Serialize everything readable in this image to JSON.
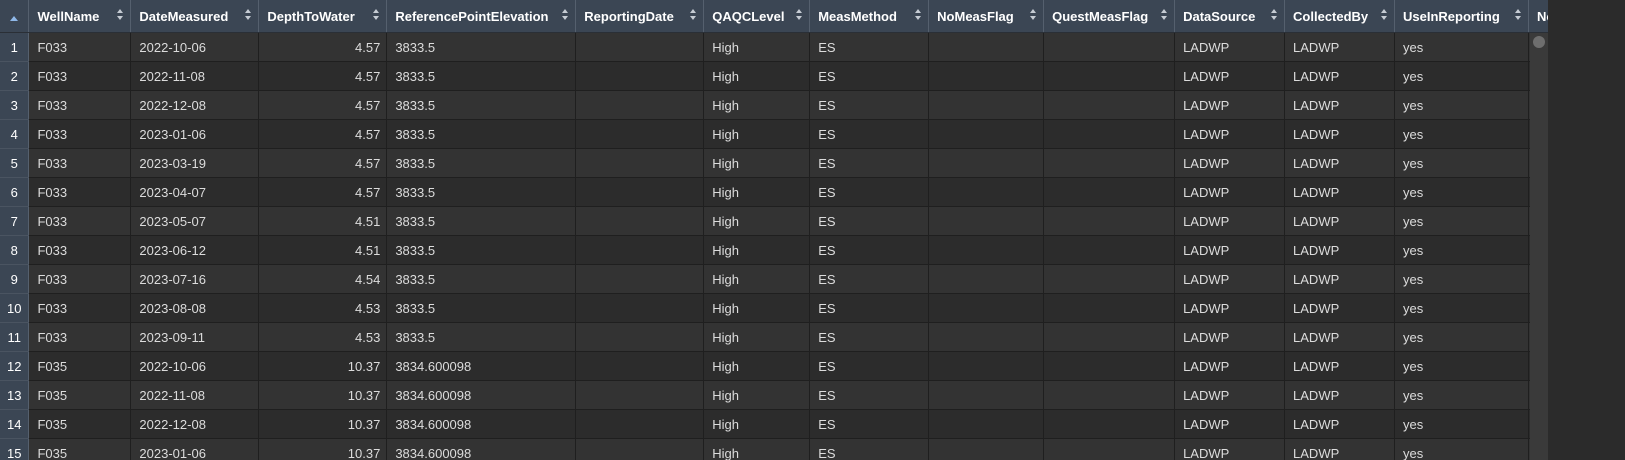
{
  "columns": [
    {
      "key": "idx",
      "label": ""
    },
    {
      "key": "WellName",
      "label": "WellName"
    },
    {
      "key": "DateMeasured",
      "label": "DateMeasured"
    },
    {
      "key": "DepthToWater",
      "label": "DepthToWater"
    },
    {
      "key": "ReferencePointElevation",
      "label": "ReferencePointElevation"
    },
    {
      "key": "ReportingDate",
      "label": "ReportingDate"
    },
    {
      "key": "QAQCLevel",
      "label": "QAQCLevel"
    },
    {
      "key": "MeasMethod",
      "label": "MeasMethod"
    },
    {
      "key": "NoMeasFlag",
      "label": "NoMeasFlag"
    },
    {
      "key": "QuestMeasFlag",
      "label": "QuestMeasFlag"
    },
    {
      "key": "DataSource",
      "label": "DataSource"
    },
    {
      "key": "CollectedBy",
      "label": "CollectedBy"
    },
    {
      "key": "UseInReporting",
      "label": "UseInReporting"
    },
    {
      "key": "Notes",
      "label": "No"
    }
  ],
  "rows": [
    {
      "idx": "1",
      "WellName": "F033",
      "DateMeasured": "2022-10-06",
      "DepthToWater": "4.57",
      "ReferencePointElevation": "3833.5",
      "ReportingDate": "",
      "QAQCLevel": "High",
      "MeasMethod": "ES",
      "NoMeasFlag": "",
      "QuestMeasFlag": "",
      "DataSource": "LADWP",
      "CollectedBy": "LADWP",
      "UseInReporting": "yes"
    },
    {
      "idx": "2",
      "WellName": "F033",
      "DateMeasured": "2022-11-08",
      "DepthToWater": "4.57",
      "ReferencePointElevation": "3833.5",
      "ReportingDate": "",
      "QAQCLevel": "High",
      "MeasMethod": "ES",
      "NoMeasFlag": "",
      "QuestMeasFlag": "",
      "DataSource": "LADWP",
      "CollectedBy": "LADWP",
      "UseInReporting": "yes"
    },
    {
      "idx": "3",
      "WellName": "F033",
      "DateMeasured": "2022-12-08",
      "DepthToWater": "4.57",
      "ReferencePointElevation": "3833.5",
      "ReportingDate": "",
      "QAQCLevel": "High",
      "MeasMethod": "ES",
      "NoMeasFlag": "",
      "QuestMeasFlag": "",
      "DataSource": "LADWP",
      "CollectedBy": "LADWP",
      "UseInReporting": "yes"
    },
    {
      "idx": "4",
      "WellName": "F033",
      "DateMeasured": "2023-01-06",
      "DepthToWater": "4.57",
      "ReferencePointElevation": "3833.5",
      "ReportingDate": "",
      "QAQCLevel": "High",
      "MeasMethod": "ES",
      "NoMeasFlag": "",
      "QuestMeasFlag": "",
      "DataSource": "LADWP",
      "CollectedBy": "LADWP",
      "UseInReporting": "yes"
    },
    {
      "idx": "5",
      "WellName": "F033",
      "DateMeasured": "2023-03-19",
      "DepthToWater": "4.57",
      "ReferencePointElevation": "3833.5",
      "ReportingDate": "",
      "QAQCLevel": "High",
      "MeasMethod": "ES",
      "NoMeasFlag": "",
      "QuestMeasFlag": "",
      "DataSource": "LADWP",
      "CollectedBy": "LADWP",
      "UseInReporting": "yes"
    },
    {
      "idx": "6",
      "WellName": "F033",
      "DateMeasured": "2023-04-07",
      "DepthToWater": "4.57",
      "ReferencePointElevation": "3833.5",
      "ReportingDate": "",
      "QAQCLevel": "High",
      "MeasMethod": "ES",
      "NoMeasFlag": "",
      "QuestMeasFlag": "",
      "DataSource": "LADWP",
      "CollectedBy": "LADWP",
      "UseInReporting": "yes"
    },
    {
      "idx": "7",
      "WellName": "F033",
      "DateMeasured": "2023-05-07",
      "DepthToWater": "4.51",
      "ReferencePointElevation": "3833.5",
      "ReportingDate": "",
      "QAQCLevel": "High",
      "MeasMethod": "ES",
      "NoMeasFlag": "",
      "QuestMeasFlag": "",
      "DataSource": "LADWP",
      "CollectedBy": "LADWP",
      "UseInReporting": "yes"
    },
    {
      "idx": "8",
      "WellName": "F033",
      "DateMeasured": "2023-06-12",
      "DepthToWater": "4.51",
      "ReferencePointElevation": "3833.5",
      "ReportingDate": "",
      "QAQCLevel": "High",
      "MeasMethod": "ES",
      "NoMeasFlag": "",
      "QuestMeasFlag": "",
      "DataSource": "LADWP",
      "CollectedBy": "LADWP",
      "UseInReporting": "yes"
    },
    {
      "idx": "9",
      "WellName": "F033",
      "DateMeasured": "2023-07-16",
      "DepthToWater": "4.54",
      "ReferencePointElevation": "3833.5",
      "ReportingDate": "",
      "QAQCLevel": "High",
      "MeasMethod": "ES",
      "NoMeasFlag": "",
      "QuestMeasFlag": "",
      "DataSource": "LADWP",
      "CollectedBy": "LADWP",
      "UseInReporting": "yes"
    },
    {
      "idx": "10",
      "WellName": "F033",
      "DateMeasured": "2023-08-08",
      "DepthToWater": "4.53",
      "ReferencePointElevation": "3833.5",
      "ReportingDate": "",
      "QAQCLevel": "High",
      "MeasMethod": "ES",
      "NoMeasFlag": "",
      "QuestMeasFlag": "",
      "DataSource": "LADWP",
      "CollectedBy": "LADWP",
      "UseInReporting": "yes"
    },
    {
      "idx": "11",
      "WellName": "F033",
      "DateMeasured": "2023-09-11",
      "DepthToWater": "4.53",
      "ReferencePointElevation": "3833.5",
      "ReportingDate": "",
      "QAQCLevel": "High",
      "MeasMethod": "ES",
      "NoMeasFlag": "",
      "QuestMeasFlag": "",
      "DataSource": "LADWP",
      "CollectedBy": "LADWP",
      "UseInReporting": "yes"
    },
    {
      "idx": "12",
      "WellName": "F035",
      "DateMeasured": "2022-10-06",
      "DepthToWater": "10.37",
      "ReferencePointElevation": "3834.600098",
      "ReportingDate": "",
      "QAQCLevel": "High",
      "MeasMethod": "ES",
      "NoMeasFlag": "",
      "QuestMeasFlag": "",
      "DataSource": "LADWP",
      "CollectedBy": "LADWP",
      "UseInReporting": "yes"
    },
    {
      "idx": "13",
      "WellName": "F035",
      "DateMeasured": "2022-11-08",
      "DepthToWater": "10.37",
      "ReferencePointElevation": "3834.600098",
      "ReportingDate": "",
      "QAQCLevel": "High",
      "MeasMethod": "ES",
      "NoMeasFlag": "",
      "QuestMeasFlag": "",
      "DataSource": "LADWP",
      "CollectedBy": "LADWP",
      "UseInReporting": "yes"
    },
    {
      "idx": "14",
      "WellName": "F035",
      "DateMeasured": "2022-12-08",
      "DepthToWater": "10.37",
      "ReferencePointElevation": "3834.600098",
      "ReportingDate": "",
      "QAQCLevel": "High",
      "MeasMethod": "ES",
      "NoMeasFlag": "",
      "QuestMeasFlag": "",
      "DataSource": "LADWP",
      "CollectedBy": "LADWP",
      "UseInReporting": "yes"
    },
    {
      "idx": "15",
      "WellName": "F035",
      "DateMeasured": "2023-01-06",
      "DepthToWater": "10.37",
      "ReferencePointElevation": "3834.600098",
      "ReportingDate": "",
      "QAQCLevel": "High",
      "MeasMethod": "ES",
      "NoMeasFlag": "",
      "QuestMeasFlag": "",
      "DataSource": "LADWP",
      "CollectedBy": "LADWP",
      "UseInReporting": "yes"
    }
  ],
  "sort": {
    "column": "idx",
    "direction": "ascending",
    "icon": "sort-ascending-icon"
  }
}
